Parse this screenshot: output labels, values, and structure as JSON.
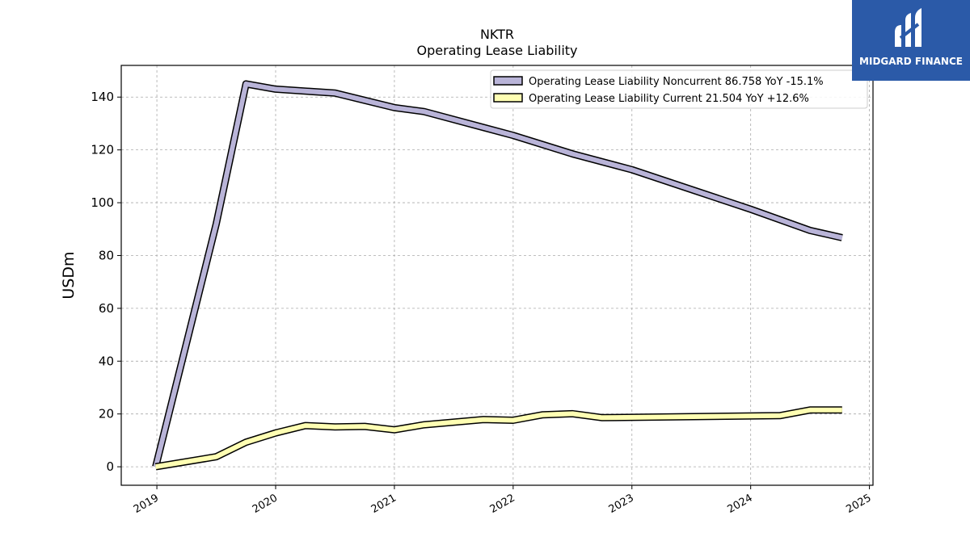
{
  "chart_data": {
    "type": "area",
    "title": "NKTR",
    "subtitle": "Operating Lease Liability",
    "xlabel": "",
    "ylabel": "USDm",
    "xlim": [
      2018.7,
      2025.03
    ],
    "ylim": [
      -7,
      152
    ],
    "x_ticks": [
      2019,
      2020,
      2021,
      2022,
      2023,
      2024,
      2025
    ],
    "y_ticks": [
      0,
      20,
      40,
      60,
      80,
      100,
      120,
      140
    ],
    "grid": true,
    "legend_position": "top-right",
    "series": [
      {
        "name": "Operating Lease Liability Noncurrent",
        "legend_label": "Operating Lease Liability Noncurrent  86.758 YoY -15.1%",
        "color": "#b9b4d8",
        "x": [
          2018.99,
          2019.5,
          2019.75,
          2020.0,
          2020.5,
          2021.0,
          2021.25,
          2021.75,
          2022.0,
          2022.5,
          2023.0,
          2023.5,
          2024.0,
          2024.5,
          2024.77
        ],
        "values": [
          0,
          92,
          145,
          143,
          141.5,
          136,
          134.5,
          128.5,
          125.5,
          118.5,
          112.5,
          105,
          97.5,
          89.5,
          86.76
        ]
      },
      {
        "name": "Operating Lease Liability Current",
        "legend_label": "Operating Lease Liability Current  21.504 YoY +12.6%",
        "color": "#ffffb3",
        "x": [
          2018.99,
          2019.5,
          2019.75,
          2020.0,
          2020.25,
          2020.5,
          2020.75,
          2021.0,
          2021.25,
          2021.75,
          2022.0,
          2022.25,
          2022.5,
          2022.75,
          2024.25,
          2024.5,
          2024.77
        ],
        "values": [
          0,
          3.8,
          9.3,
          12.8,
          15.6,
          15.1,
          15.3,
          14.0,
          15.9,
          17.9,
          17.6,
          19.7,
          20.1,
          18.6,
          19.4,
          21.5,
          21.5
        ]
      }
    ]
  },
  "logo": {
    "text": "MIDGARD FINANCE",
    "color": "#2b5aa8"
  }
}
